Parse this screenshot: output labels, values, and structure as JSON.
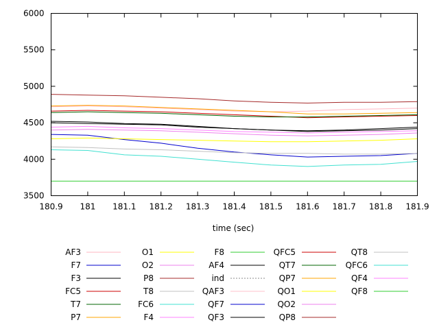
{
  "chart_data": {
    "type": "line",
    "title": "",
    "xlabel": "time (sec)",
    "ylabel": "",
    "xlim": [
      180.9,
      181.9
    ],
    "ylim": [
      3500,
      6000
    ],
    "xticks": [
      "180.9",
      "181",
      "181.1",
      "181.2",
      "181.3",
      "181.4",
      "181.5",
      "181.6",
      "181.7",
      "181.8",
      "181.9"
    ],
    "yticks": [
      "3500",
      "4000",
      "4500",
      "5000",
      "5500",
      "6000"
    ],
    "grid": false,
    "legend_position": "bottom",
    "x": [
      180.9,
      181.0,
      181.1,
      181.2,
      181.3,
      181.4,
      181.5,
      181.6,
      181.7,
      181.8,
      181.9
    ],
    "series": [
      {
        "name": "AF3",
        "color": "#ffb6c1",
        "values": [
          4720,
          4730,
          4720,
          4700,
          4680,
          4660,
          4650,
          4660,
          4680,
          4690,
          4700
        ]
      },
      {
        "name": "F7",
        "color": "#0000cd",
        "values": [
          4340,
          4330,
          4270,
          4220,
          4150,
          4100,
          4060,
          4030,
          4040,
          4050,
          4080
        ]
      },
      {
        "name": "F3",
        "color": "#000000",
        "values": [
          4500,
          4490,
          4480,
          4470,
          4440,
          4420,
          4400,
          4390,
          4400,
          4420,
          4440
        ]
      },
      {
        "name": "FC5",
        "color": "#cd0000",
        "values": [
          4660,
          4670,
          4660,
          4650,
          4630,
          4610,
          4590,
          4570,
          4580,
          4590,
          4600
        ]
      },
      {
        "name": "T7",
        "color": "#006400",
        "values": [
          4640,
          4650,
          4640,
          4630,
          4610,
          4590,
          4580,
          4580,
          4590,
          4600,
          4610
        ]
      },
      {
        "name": "P7",
        "color": "#ffa500",
        "values": [
          4730,
          4740,
          4730,
          4710,
          4690,
          4670,
          4650,
          4620,
          4620,
          4630,
          4640
        ]
      },
      {
        "name": "O1",
        "color": "#ffff00",
        "values": [
          4280,
          4290,
          4280,
          4270,
          4260,
          4250,
          4240,
          4240,
          4250,
          4260,
          4280
        ]
      },
      {
        "name": "O2",
        "color": "#ee82ee",
        "values": [
          4400,
          4410,
          4400,
          4390,
          4370,
          4350,
          4330,
          4320,
          4330,
          4340,
          4360
        ]
      },
      {
        "name": "P8",
        "color": "#a52a2a",
        "values": [
          4890,
          4880,
          4870,
          4850,
          4830,
          4800,
          4780,
          4770,
          4780,
          4780,
          4790
        ]
      },
      {
        "name": "T8",
        "color": "#c0c0c0",
        "values": [
          4170,
          4160,
          4140,
          4130,
          4110,
          4090,
          4080,
          4080,
          4070,
          4070,
          4080
        ]
      },
      {
        "name": "FC6",
        "color": "#40e0d0",
        "values": [
          4130,
          4120,
          4060,
          4040,
          4000,
          3960,
          3920,
          3900,
          3920,
          3930,
          3970
        ]
      },
      {
        "name": "F4",
        "color": "#ff80ff",
        "values": [
          4440,
          4450,
          4430,
          4420,
          4400,
          4380,
          4370,
          4360,
          4370,
          4380,
          4390
        ]
      },
      {
        "name": "F8",
        "color": "#32cd32",
        "values": [
          3700,
          3700,
          3700,
          3700,
          3700,
          3700,
          3700,
          3700,
          3700,
          3700,
          3700
        ]
      },
      {
        "name": "AF4",
        "color": "#000000",
        "values": [
          4520,
          4510,
          4490,
          4480,
          4450,
          4420,
          4400,
          4380,
          4390,
          4400,
          4420
        ]
      },
      {
        "name": "ind",
        "color": "#888888",
        "dashed": true,
        "values": [
          3500,
          3500,
          3500,
          3500,
          3500,
          3500,
          3500,
          3500,
          3500,
          3500,
          3500
        ]
      },
      {
        "name": "QAF3",
        "color": "#ffc0cb",
        "values": [
          3500,
          3500,
          3500,
          3500,
          3500,
          3500,
          3500,
          3500,
          3500,
          3500,
          3500
        ]
      },
      {
        "name": "QF7",
        "color": "#0000cd",
        "values": [
          3500,
          3500,
          3500,
          3500,
          3500,
          3500,
          3500,
          3500,
          3500,
          3500,
          3500
        ]
      },
      {
        "name": "QF3",
        "color": "#000000",
        "values": [
          3500,
          3500,
          3500,
          3500,
          3500,
          3500,
          3500,
          3500,
          3500,
          3500,
          3500
        ]
      },
      {
        "name": "QFC5",
        "color": "#cd0000",
        "values": [
          3500,
          3500,
          3500,
          3500,
          3500,
          3500,
          3500,
          3500,
          3500,
          3500,
          3500
        ]
      },
      {
        "name": "QT7",
        "color": "#006400",
        "values": [
          3500,
          3500,
          3500,
          3500,
          3500,
          3500,
          3500,
          3500,
          3500,
          3500,
          3500
        ]
      },
      {
        "name": "QP7",
        "color": "#ffa500",
        "values": [
          3500,
          3500,
          3500,
          3500,
          3500,
          3500,
          3500,
          3500,
          3500,
          3500,
          3500
        ]
      },
      {
        "name": "QO1",
        "color": "#ffff00",
        "values": [
          3500,
          3500,
          3500,
          3500,
          3500,
          3500,
          3500,
          3500,
          3500,
          3500,
          3500
        ]
      },
      {
        "name": "QO2",
        "color": "#ee82ee",
        "values": [
          3500,
          3500,
          3500,
          3500,
          3500,
          3500,
          3500,
          3500,
          3500,
          3500,
          3500
        ]
      },
      {
        "name": "QP8",
        "color": "#a52a2a",
        "values": [
          3500,
          3500,
          3500,
          3500,
          3500,
          3500,
          3500,
          3500,
          3500,
          3500,
          3500
        ]
      },
      {
        "name": "QT8",
        "color": "#c0c0c0",
        "values": [
          3500,
          3500,
          3500,
          3500,
          3500,
          3500,
          3500,
          3500,
          3500,
          3500,
          3500
        ]
      },
      {
        "name": "QFC6",
        "color": "#40e0d0",
        "values": [
          3500,
          3500,
          3500,
          3500,
          3500,
          3500,
          3500,
          3500,
          3500,
          3500,
          3500
        ]
      },
      {
        "name": "QF4",
        "color": "#ff80ff",
        "values": [
          3500,
          3500,
          3500,
          3500,
          3500,
          3500,
          3500,
          3500,
          3500,
          3500,
          3500
        ]
      },
      {
        "name": "QF8",
        "color": "#32cd32",
        "values": [
          3500,
          3500,
          3500,
          3500,
          3500,
          3500,
          3500,
          3500,
          3500,
          3500,
          3500
        ]
      }
    ]
  }
}
